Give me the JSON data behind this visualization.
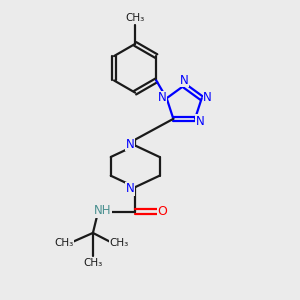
{
  "background_color": "#ebebeb",
  "bond_color": "#1a1a1a",
  "nitrogen_color": "#0000ff",
  "oxygen_color": "#ff0000",
  "nh_color": "#4a9090",
  "figsize": [
    3.0,
    3.0
  ],
  "dpi": 100,
  "xlim": [
    0,
    10
  ],
  "ylim": [
    0,
    10
  ]
}
